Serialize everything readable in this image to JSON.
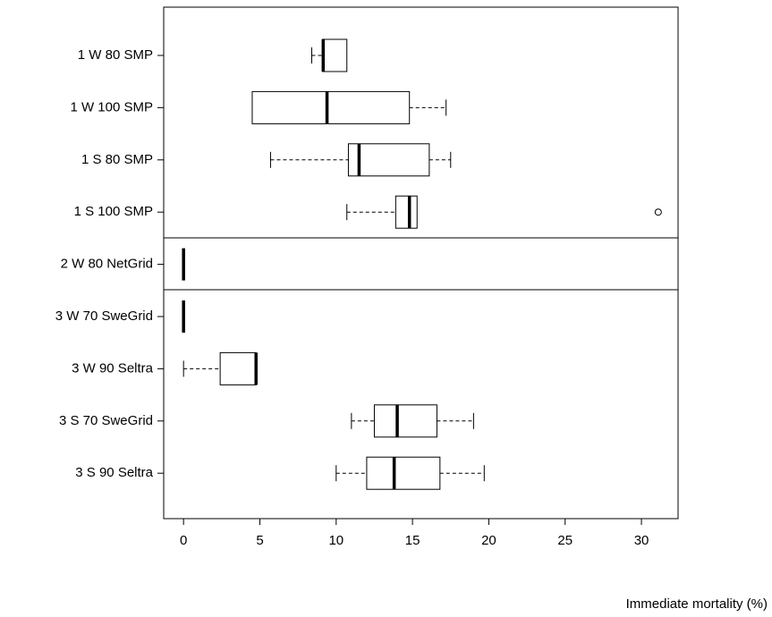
{
  "chart_data": {
    "type": "boxplot",
    "orientation": "horizontal",
    "x_label": "Immediate mortality (%)",
    "xlim": [
      -1.3,
      32.4
    ],
    "xticks": [
      0,
      5,
      10,
      15,
      20,
      25,
      30
    ],
    "color": "#000000",
    "boxes": [
      {
        "label": "1 W 80 SMP",
        "min": 8.4,
        "q1": 9.1,
        "median": 9.15,
        "q3": 10.7,
        "max": 10.7,
        "outliers": []
      },
      {
        "label": "1 W 100 SMP",
        "min": 4.5,
        "q1": 4.5,
        "median": 9.4,
        "q3": 14.8,
        "max": 17.2,
        "outliers": []
      },
      {
        "label": "1 S 80 SMP",
        "min": 5.7,
        "q1": 10.8,
        "median": 11.5,
        "q3": 16.1,
        "max": 17.5,
        "outliers": []
      },
      {
        "label": "1 S 100 SMP",
        "min": 10.7,
        "q1": 13.9,
        "median": 14.8,
        "q3": 15.3,
        "max": 15.3,
        "outliers": [
          31.1
        ]
      },
      {
        "label": "2 W 80 NetGrid",
        "min": 0,
        "q1": 0,
        "median": 0,
        "q3": 0,
        "max": 0,
        "outliers": []
      },
      {
        "label": "3 W 70 SweGrid",
        "min": 0,
        "q1": 0,
        "median": 0,
        "q3": 0,
        "max": 0,
        "outliers": []
      },
      {
        "label": "3 W 90 Seltra",
        "min": 0,
        "q1": 2.4,
        "median": 4.75,
        "q3": 4.75,
        "max": 4.75,
        "outliers": []
      },
      {
        "label": "3 S 70 SweGrid",
        "min": 11,
        "q1": 12.5,
        "median": 14,
        "q3": 16.6,
        "max": 19,
        "outliers": []
      },
      {
        "label": "3 S 90 Seltra",
        "min": 10,
        "q1": 12,
        "median": 13.8,
        "q3": 16.8,
        "max": 19.7,
        "outliers": []
      }
    ]
  }
}
